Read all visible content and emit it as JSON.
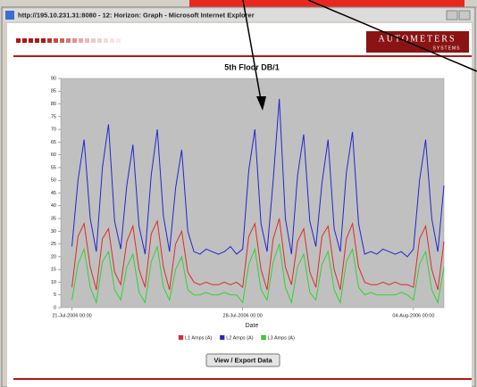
{
  "window": {
    "title": "http://195.10.231.31:8080 - 12: Horizon: Graph - Microsoft Internet Explorer"
  },
  "header": {
    "logo": "AUTOMETERS",
    "logo_sub": "SYSTEMS"
  },
  "button": {
    "label": "View / Export Data"
  },
  "chart_data": {
    "type": "line",
    "title": "5th Floor DB/1",
    "x_label": "Date",
    "x": [
      "2006-07-21 00:00",
      "2006-07-21 06:00",
      "2006-07-21 12:00",
      "2006-07-21 18:00",
      "2006-07-22 00:00",
      "2006-07-22 06:00",
      "2006-07-22 12:00",
      "2006-07-22 18:00",
      "2006-07-23 00:00",
      "2006-07-23 06:00",
      "2006-07-23 12:00",
      "2006-07-23 18:00",
      "2006-07-24 00:00",
      "2006-07-24 06:00",
      "2006-07-24 12:00",
      "2006-07-24 18:00",
      "2006-07-25 00:00",
      "2006-07-25 06:00",
      "2006-07-25 12:00",
      "2006-07-25 18:00",
      "2006-07-26 00:00",
      "2006-07-26 06:00",
      "2006-07-26 12:00",
      "2006-07-26 18:00",
      "2006-07-27 00:00",
      "2006-07-27 06:00",
      "2006-07-27 12:00",
      "2006-07-27 18:00",
      "2006-07-28 00:00",
      "2006-07-28 06:00",
      "2006-07-28 12:00",
      "2006-07-28 18:00",
      "2006-07-29 00:00",
      "2006-07-29 06:00",
      "2006-07-29 12:00",
      "2006-07-29 18:00",
      "2006-07-30 00:00",
      "2006-07-30 06:00",
      "2006-07-30 12:00",
      "2006-07-30 18:00",
      "2006-07-31 00:00",
      "2006-07-31 06:00",
      "2006-07-31 12:00",
      "2006-07-31 18:00",
      "2006-08-01 00:00",
      "2006-08-01 06:00",
      "2006-08-01 12:00",
      "2006-08-01 18:00",
      "2006-08-02 00:00",
      "2006-08-02 06:00",
      "2006-08-02 12:00",
      "2006-08-02 18:00",
      "2006-08-03 00:00",
      "2006-08-03 06:00",
      "2006-08-03 12:00",
      "2006-08-03 18:00",
      "2006-08-04 00:00",
      "2006-08-04 06:00",
      "2006-08-04 12:00",
      "2006-08-04 18:00",
      "2006-08-05 00:00",
      "2006-08-05 06:00"
    ],
    "series": [
      {
        "name": "L1 Amps (A)",
        "color": "#e02a2a",
        "values": [
          8,
          28,
          33,
          16,
          7,
          27,
          31,
          14,
          9,
          26,
          32,
          15,
          8,
          29,
          34,
          16,
          7,
          25,
          30,
          14,
          10,
          9,
          10,
          9,
          9,
          10,
          9,
          10,
          8,
          28,
          33,
          15,
          7,
          27,
          35,
          16,
          9,
          26,
          31,
          14,
          8,
          28,
          32,
          15,
          7,
          27,
          33,
          16,
          10,
          9,
          9,
          10,
          9,
          10,
          9,
          9,
          8,
          27,
          32,
          15,
          7,
          26
        ]
      },
      {
        "name": "L2 Amps (A)",
        "color": "#2424d0",
        "values": [
          24,
          50,
          66,
          35,
          22,
          55,
          72,
          34,
          23,
          48,
          64,
          32,
          21,
          52,
          70,
          36,
          22,
          47,
          62,
          30,
          22,
          21,
          23,
          22,
          21,
          22,
          24,
          21,
          23,
          54,
          70,
          33,
          22,
          50,
          82,
          35,
          21,
          52,
          68,
          34,
          24,
          49,
          66,
          31,
          22,
          53,
          69,
          33,
          21,
          22,
          21,
          23,
          22,
          21,
          22,
          20,
          23,
          50,
          66,
          35,
          22,
          48
        ]
      },
      {
        "name": "L3 Amps (A)",
        "color": "#2ed42e",
        "values": [
          3,
          17,
          23,
          8,
          2,
          18,
          22,
          7,
          3,
          16,
          21,
          6,
          2,
          18,
          24,
          8,
          3,
          15,
          20,
          7,
          5,
          5,
          6,
          5,
          5,
          6,
          5,
          5,
          2,
          17,
          23,
          7,
          3,
          18,
          25,
          8,
          2,
          16,
          21,
          6,
          3,
          17,
          22,
          7,
          2,
          18,
          23,
          8,
          5,
          6,
          5,
          5,
          5,
          5,
          6,
          5,
          3,
          17,
          22,
          7,
          2,
          16
        ]
      }
    ],
    "xlim": [
      "2006-07-20 13:00",
      "2006-08-05 06:00"
    ],
    "xticks": [
      {
        "value": "2006-07-21 00:00",
        "label": "21-Jul-2006 00:00"
      },
      {
        "value": "2006-07-28 00:00",
        "label": "28-Jul-2006 00:00"
      },
      {
        "value": "2006-08-04 00:00",
        "label": "04-Aug-2006 00:00"
      }
    ],
    "ylim": [
      0,
      90
    ],
    "yticks": [
      0,
      5,
      10,
      15,
      20,
      25,
      30,
      35,
      40,
      45,
      50,
      55,
      60,
      65,
      70,
      75,
      80,
      85,
      90
    ],
    "grid": false
  }
}
